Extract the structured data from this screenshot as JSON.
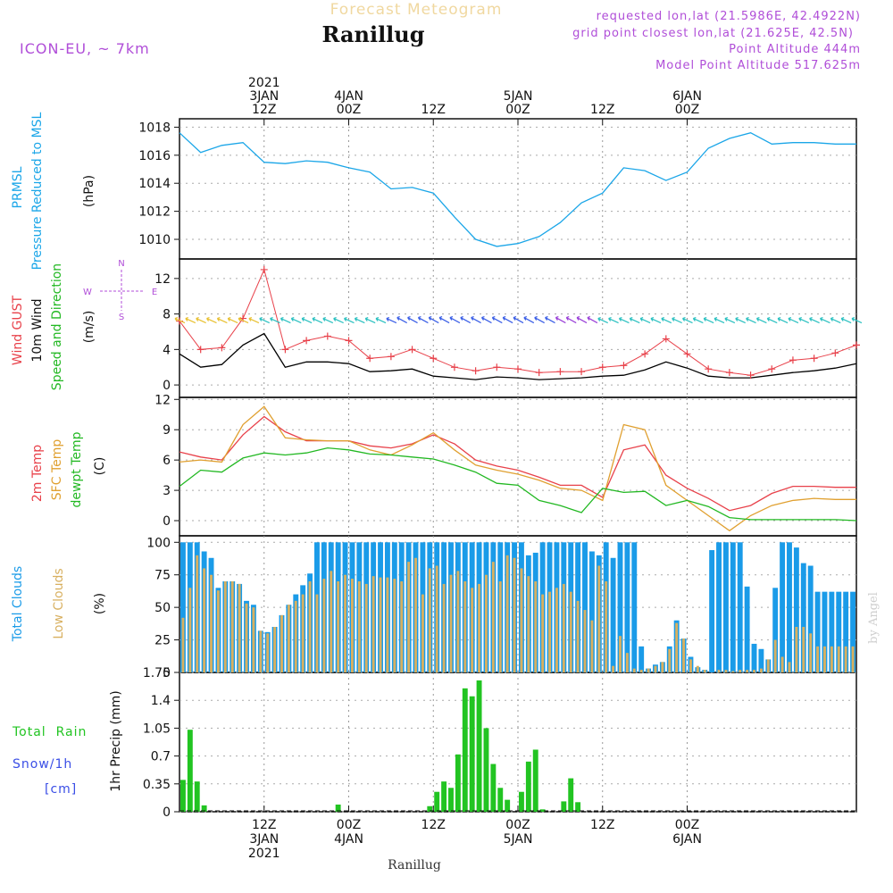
{
  "header": {
    "product": "Forecast Meteogram",
    "station": "Ranillug",
    "model": "ICON-EU, ~ 7km",
    "requested": "requested lon,lat (21.5986E, 42.4922N)",
    "grid_point": "grid point closest lon,lat (21.625E, 42.5N)",
    "point_altitude": "Point Altitude 444m",
    "model_altitude": "Model Point Altitude 517.625m",
    "footer_station": "Ranillug",
    "watermark": "by Angel"
  },
  "colors": {
    "pressure": "#1ba6e8",
    "gust": "#e8414a",
    "wind": "#000000",
    "dir_label": "#22b822",
    "temp": "#e8414a",
    "sfc": "#e0a030",
    "dew": "#22b822",
    "total_cloud": "#1a9be8",
    "low_cloud": "#d8b060",
    "rain": "#22c422",
    "snow": "#3a4ee6",
    "purple": "#b04ed8"
  },
  "chart_data": [
    {
      "type": "line",
      "ylabel_lines": [
        "PRMSL",
        "Pressure Reduced to MSL"
      ],
      "unit": "(hPa)",
      "x_hours_from_start": [
        0,
        3,
        6,
        9,
        12,
        15,
        18,
        21,
        24,
        27,
        30,
        33,
        36,
        39,
        42,
        45,
        48,
        51,
        54,
        57,
        60,
        63,
        66,
        69,
        72,
        75,
        78,
        81,
        84,
        87,
        90,
        93,
        96
      ],
      "pressure_hpa": [
        1017.6,
        1016.2,
        1016.7,
        1016.9,
        1015.5,
        1015.4,
        1015.6,
        1015.5,
        1015.1,
        1014.8,
        1013.6,
        1013.7,
        1013.3,
        1011.6,
        1010.0,
        1009.5,
        1009.7,
        1010.2,
        1011.2,
        1012.6,
        1013.3,
        1015.1,
        1014.9,
        1014.2,
        1014.8,
        1016.5,
        1017.2,
        1017.6,
        1016.8,
        1016.9,
        1016.9,
        1016.8,
        1016.8
      ],
      "yticks": [
        1010,
        1012,
        1014,
        1016,
        1018
      ],
      "ylim": [
        1008.6,
        1018.6
      ]
    },
    {
      "type": "line",
      "ylabel_lines": [
        "Wind GUST",
        "10m Wind",
        "Speed and Direction"
      ],
      "unit": "(m/s)",
      "compass": {
        "n": "N",
        "s": "S",
        "w": "W",
        "e": "E"
      },
      "x_hours_from_start": [
        0,
        3,
        6,
        9,
        12,
        15,
        18,
        21,
        24,
        27,
        30,
        33,
        36,
        39,
        42,
        45,
        48,
        51,
        54,
        57,
        60,
        63,
        66,
        69,
        72,
        75,
        78,
        81,
        84,
        87,
        90,
        93,
        96
      ],
      "gust_ms": [
        7.2,
        4.0,
        4.2,
        7.5,
        13.0,
        4.0,
        5.0,
        5.5,
        5.0,
        3.0,
        3.2,
        4.0,
        3.0,
        2.0,
        1.6,
        2.0,
        1.8,
        1.4,
        1.5,
        1.5,
        2.0,
        2.2,
        3.5,
        5.2,
        3.5,
        1.8,
        1.4,
        1.1,
        1.8,
        2.8,
        3.0,
        3.6,
        4.5
      ],
      "wind_ms": [
        3.5,
        2.0,
        2.3,
        4.5,
        5.8,
        2.0,
        2.6,
        2.6,
        2.4,
        1.5,
        1.6,
        1.8,
        1.0,
        0.8,
        0.6,
        0.9,
        0.8,
        0.6,
        0.7,
        0.8,
        1.0,
        1.1,
        1.7,
        2.6,
        1.9,
        1.0,
        0.8,
        0.8,
        1.1,
        1.4,
        1.6,
        1.9,
        2.4
      ],
      "yticks": [
        0,
        4,
        8,
        12
      ],
      "ylim": [
        -1.4,
        14.2
      ]
    },
    {
      "type": "line",
      "ylabel_lines": [
        "2m Temp",
        "SFC Temp",
        "dewpt Temp"
      ],
      "unit": "(C)",
      "x_hours_from_start": [
        0,
        3,
        6,
        9,
        12,
        15,
        18,
        21,
        24,
        27,
        30,
        33,
        36,
        39,
        42,
        45,
        48,
        51,
        54,
        57,
        60,
        63,
        66,
        69,
        72,
        75,
        78,
        81,
        84,
        87,
        90,
        93,
        96
      ],
      "temp_2m": [
        6.8,
        6.3,
        6.0,
        8.5,
        10.3,
        8.8,
        7.9,
        7.9,
        7.9,
        7.4,
        7.2,
        7.6,
        8.5,
        7.6,
        6.0,
        5.4,
        5.0,
        4.3,
        3.5,
        3.5,
        2.3,
        7.0,
        7.5,
        4.5,
        3.2,
        2.2,
        1.0,
        1.5,
        2.7,
        3.4,
        3.4,
        3.3,
        3.3
      ],
      "temp_sfc": [
        5.8,
        6.0,
        5.8,
        9.5,
        11.3,
        8.2,
        8.0,
        7.9,
        7.9,
        7.0,
        6.5,
        7.5,
        8.7,
        7.0,
        5.5,
        5.0,
        4.6,
        4.0,
        3.2,
        3.0,
        2.0,
        9.5,
        9.0,
        3.5,
        2.0,
        0.5,
        -1.0,
        0.5,
        1.5,
        2.0,
        2.2,
        2.1,
        2.1
      ],
      "dewpoint": [
        3.4,
        5.0,
        4.8,
        6.2,
        6.7,
        6.5,
        6.7,
        7.2,
        7.0,
        6.6,
        6.5,
        6.3,
        6.1,
        5.5,
        4.8,
        3.7,
        3.5,
        2.0,
        1.5,
        0.8,
        3.2,
        2.8,
        2.9,
        1.5,
        2.0,
        1.4,
        0.3,
        0.1,
        0.1,
        0.1,
        0.1,
        0.1,
        0.0
      ],
      "yticks": [
        0,
        3,
        6,
        9,
        12
      ],
      "ylim": [
        -1.5,
        12.2
      ]
    },
    {
      "type": "bar",
      "ylabel_lines": [
        "Total Clouds",
        "Low Clouds"
      ],
      "unit": "(%)",
      "x_hours_from_start": [
        0,
        1,
        2,
        3,
        4,
        5,
        6,
        7,
        8,
        9,
        10,
        11,
        12,
        13,
        14,
        15,
        16,
        17,
        18,
        19,
        20,
        21,
        22,
        23,
        24,
        25,
        26,
        27,
        28,
        29,
        30,
        31,
        32,
        33,
        34,
        35,
        36,
        37,
        38,
        39,
        40,
        41,
        42,
        43,
        44,
        45,
        46,
        47,
        48,
        49,
        50,
        51,
        52,
        53,
        54,
        55,
        56,
        57,
        58,
        59,
        60,
        61,
        62,
        63,
        64,
        65,
        66,
        67,
        68,
        69,
        70,
        71,
        72,
        73,
        74,
        75,
        76,
        77,
        78,
        79,
        80,
        81,
        82,
        83,
        84,
        85,
        86,
        87,
        88,
        89,
        90,
        91,
        92,
        93,
        94,
        95
      ],
      "total_pct": [
        100,
        100,
        100,
        93,
        88,
        65,
        70,
        70,
        68,
        55,
        52,
        32,
        31,
        35,
        44,
        52,
        60,
        67,
        76,
        100,
        100,
        100,
        100,
        100,
        100,
        100,
        100,
        100,
        100,
        100,
        100,
        100,
        100,
        100,
        100,
        100,
        100,
        100,
        100,
        100,
        100,
        100,
        100,
        100,
        100,
        100,
        100,
        100,
        100,
        90,
        92,
        100,
        100,
        100,
        100,
        100,
        100,
        100,
        93,
        90,
        100,
        88,
        100,
        100,
        100,
        20,
        3,
        6,
        8,
        20,
        40,
        26,
        12,
        4,
        2,
        94,
        100,
        100,
        100,
        100,
        66,
        22,
        18,
        10,
        65,
        100,
        100,
        96,
        84,
        82,
        62,
        62,
        62,
        62,
        62,
        62
      ],
      "low_pct": [
        42,
        65,
        90,
        80,
        75,
        63,
        70,
        70,
        68,
        53,
        50,
        32,
        30,
        35,
        44,
        52,
        55,
        60,
        70,
        60,
        72,
        78,
        70,
        75,
        72,
        70,
        68,
        74,
        73,
        73,
        72,
        70,
        85,
        88,
        60,
        80,
        82,
        68,
        75,
        78,
        70,
        65,
        68,
        75,
        85,
        70,
        90,
        88,
        80,
        74,
        70,
        60,
        62,
        65,
        68,
        62,
        55,
        48,
        40,
        82,
        70,
        5,
        28,
        15,
        3,
        2,
        3,
        5,
        8,
        18,
        38,
        26,
        10,
        5,
        2,
        0,
        2,
        2,
        1,
        2,
        2,
        2,
        3,
        10,
        25,
        12,
        8,
        35,
        35,
        30,
        20,
        20,
        20,
        20,
        20,
        20
      ],
      "yticks": [
        0,
        25,
        50,
        75,
        100
      ],
      "ylim": [
        0,
        105
      ]
    },
    {
      "type": "bar",
      "ylabel_lines": [
        "Total  Rain",
        "Snow/1h",
        "[cm]"
      ],
      "unit": "1hr Precip (mm)",
      "x_hours_from_start": [
        0,
        1,
        2,
        3,
        4,
        5,
        6,
        7,
        8,
        9,
        10,
        11,
        12,
        13,
        14,
        15,
        16,
        17,
        18,
        19,
        20,
        21,
        22,
        23,
        24,
        25,
        26,
        27,
        28,
        29,
        30,
        31,
        32,
        33,
        34,
        35,
        36,
        37,
        38,
        39,
        40,
        41,
        42,
        43,
        44,
        45,
        46,
        47,
        48,
        49,
        50,
        51,
        52,
        53,
        54,
        55,
        56,
        57,
        58,
        59,
        60,
        61,
        62,
        63,
        64,
        65,
        66,
        67,
        68,
        69,
        70,
        71,
        72,
        73,
        74,
        75,
        76,
        77,
        78,
        79,
        80,
        81,
        82,
        83,
        84,
        85,
        86,
        87,
        88,
        89,
        90,
        91,
        92,
        93,
        94,
        95
      ],
      "rain_mm": [
        0.4,
        1.03,
        0.38,
        0.08,
        0,
        0,
        0,
        0,
        0,
        0,
        0,
        0,
        0,
        0,
        0,
        0,
        0,
        0,
        0,
        0,
        0,
        0,
        0.09,
        0,
        0,
        0,
        0,
        0,
        0,
        0,
        0,
        0,
        0,
        0,
        0,
        0.07,
        0.25,
        0.38,
        0.3,
        0.72,
        1.55,
        1.45,
        1.65,
        1.05,
        0.6,
        0.3,
        0.15,
        0,
        0.25,
        0.63,
        0.78,
        0.03,
        0,
        0,
        0.13,
        0.42,
        0.12,
        0,
        0,
        0,
        0,
        0,
        0,
        0,
        0,
        0,
        0,
        0,
        0,
        0,
        0,
        0,
        0,
        0,
        0,
        0,
        0,
        0,
        0,
        0,
        0,
        0,
        0,
        0,
        0,
        0,
        0,
        0,
        0,
        0,
        0,
        0,
        0,
        0,
        0,
        0
      ],
      "yticks": [
        "0",
        "0.35",
        "0.7",
        "1.05",
        "1.4",
        "1.75"
      ],
      "ylim": [
        0,
        1.75
      ]
    }
  ],
  "time_axis": {
    "top": [
      {
        "h": 12,
        "lines": [
          "2021",
          "3JAN",
          "12Z"
        ]
      },
      {
        "h": 24,
        "lines": [
          "4JAN",
          "00Z"
        ]
      },
      {
        "h": 36,
        "lines": [
          "12Z"
        ]
      },
      {
        "h": 48,
        "lines": [
          "5JAN",
          "00Z"
        ]
      },
      {
        "h": 60,
        "lines": [
          "12Z"
        ]
      },
      {
        "h": 72,
        "lines": [
          "6JAN",
          "00Z"
        ]
      }
    ],
    "bottom": [
      {
        "h": 12,
        "lines": [
          "12Z",
          "3JAN",
          "2021"
        ]
      },
      {
        "h": 24,
        "lines": [
          "00Z",
          "4JAN"
        ]
      },
      {
        "h": 36,
        "lines": [
          "12Z"
        ]
      },
      {
        "h": 48,
        "lines": [
          "00Z",
          "5JAN"
        ]
      },
      {
        "h": 60,
        "lines": [
          "12Z"
        ]
      },
      {
        "h": 72,
        "lines": [
          "00Z",
          "6JAN"
        ]
      }
    ]
  }
}
